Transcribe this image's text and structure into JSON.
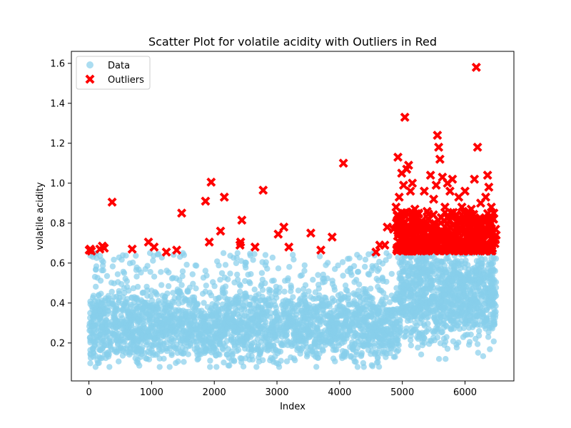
{
  "chart_data": {
    "type": "scatter",
    "title": "Scatter Plot for volatile acidity with Outliers in Red",
    "xlabel": "Index",
    "ylabel": "volatile acidity",
    "xlim": [
      -280,
      6780
    ],
    "ylim": [
      0.01,
      1.66
    ],
    "xticks": [
      0,
      1000,
      2000,
      3000,
      4000,
      5000,
      6000
    ],
    "xtick_labels": [
      "0",
      "1000",
      "2000",
      "3000",
      "4000",
      "5000",
      "6000"
    ],
    "yticks": [
      0.2,
      0.4,
      0.6,
      0.8,
      1.0,
      1.2,
      1.4,
      1.6
    ],
    "ytick_labels": [
      "0.2",
      "0.4",
      "0.6",
      "0.8",
      "1.0",
      "1.2",
      "1.4",
      "1.6"
    ],
    "grid": false,
    "legend_position": "top-left",
    "colors": {
      "data": "#87CEEB",
      "outliers": "#FF0000"
    },
    "data_band": {
      "note": "Dense cloud of 6497 points; summarized by index segments",
      "segments": [
        {
          "x_range": [
            0,
            4950
          ],
          "y_range": [
            0.08,
            0.65
          ],
          "y_center": 0.28
        },
        {
          "x_range": [
            4950,
            6497
          ],
          "y_range": [
            0.12,
            0.655
          ],
          "y_center": 0.45
        }
      ]
    },
    "series": [
      {
        "name": "Outliers",
        "marker": "X",
        "points": [
          [
            5,
            0.665
          ],
          [
            20,
            0.67
          ],
          [
            40,
            0.66
          ],
          [
            175,
            0.67
          ],
          [
            215,
            0.685
          ],
          [
            245,
            0.675
          ],
          [
            370,
            0.905
          ],
          [
            690,
            0.67
          ],
          [
            950,
            0.705
          ],
          [
            1040,
            0.68
          ],
          [
            1235,
            0.655
          ],
          [
            1400,
            0.665
          ],
          [
            1480,
            0.85
          ],
          [
            1860,
            0.91
          ],
          [
            1920,
            0.705
          ],
          [
            1950,
            1.005
          ],
          [
            2100,
            0.76
          ],
          [
            2160,
            0.93
          ],
          [
            2410,
            0.69
          ],
          [
            2420,
            0.705
          ],
          [
            2440,
            0.815
          ],
          [
            2650,
            0.68
          ],
          [
            2780,
            0.965
          ],
          [
            3020,
            0.745
          ],
          [
            3110,
            0.78
          ],
          [
            3190,
            0.68
          ],
          [
            3540,
            0.75
          ],
          [
            3700,
            0.665
          ],
          [
            3880,
            0.73
          ],
          [
            4060,
            1.1
          ],
          [
            4580,
            0.655
          ],
          [
            4640,
            0.69
          ],
          [
            4720,
            0.69
          ],
          [
            4760,
            0.78
          ],
          [
            4860,
            0.77
          ],
          [
            4900,
            0.88
          ],
          [
            4930,
            1.13
          ],
          [
            4950,
            0.93
          ],
          [
            4990,
            1.05
          ],
          [
            5020,
            0.99
          ],
          [
            5040,
            1.33
          ],
          [
            5070,
            1.07
          ],
          [
            5100,
            1.09
          ],
          [
            5130,
            0.96
          ],
          [
            5160,
            1.0
          ],
          [
            5200,
            0.87
          ],
          [
            5230,
            0.82
          ],
          [
            5260,
            0.85
          ],
          [
            5300,
            0.78
          ],
          [
            5350,
            0.96
          ],
          [
            5400,
            0.8
          ],
          [
            5450,
            1.04
          ],
          [
            5500,
            0.92
          ],
          [
            5540,
            0.99
          ],
          [
            5560,
            1.24
          ],
          [
            5580,
            1.18
          ],
          [
            5600,
            1.12
          ],
          [
            5640,
            1.03
          ],
          [
            5680,
            0.88
          ],
          [
            5720,
            1.0
          ],
          [
            5760,
            0.96
          ],
          [
            5800,
            1.02
          ],
          [
            5850,
            0.84
          ],
          [
            5900,
            0.93
          ],
          [
            5950,
            0.88
          ],
          [
            6000,
            0.96
          ],
          [
            6050,
            0.8
          ],
          [
            6100,
            0.87
          ],
          [
            6150,
            1.02
          ],
          [
            6180,
            1.58
          ],
          [
            6200,
            1.18
          ],
          [
            6250,
            0.9
          ],
          [
            6300,
            0.82
          ],
          [
            6330,
            0.93
          ],
          [
            6360,
            1.04
          ],
          [
            6380,
            0.98
          ],
          [
            6420,
            0.88
          ],
          [
            6460,
            0.85
          ],
          [
            6480,
            0.72
          ],
          [
            6497,
            0.74
          ]
        ]
      }
    ],
    "outlier_band": {
      "note": "Dense red band of outliers between 0.66 and ~0.85 for index 4900-6497",
      "x_range": [
        4900,
        6497
      ],
      "y_range": [
        0.66,
        0.86
      ]
    },
    "legend": [
      {
        "label": "Data",
        "marker": "circle",
        "color": "#87CEEB"
      },
      {
        "label": "Outliers",
        "marker": "X",
        "color": "#FF0000"
      }
    ]
  }
}
